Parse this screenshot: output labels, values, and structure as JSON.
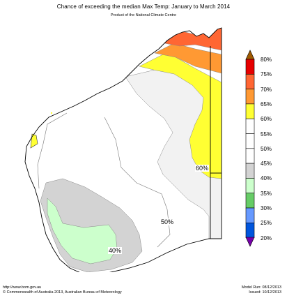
{
  "header": {
    "title": "Chance of exceeding the median Max Temp: January to March 2014",
    "subtitle": "Product of the National Climate Centre"
  },
  "map": {
    "labels": {
      "p60": "60%",
      "p50": "50%",
      "p40": "40%"
    },
    "colors": {
      "c70_75": "#ff6633",
      "c65_70": "#ff9933",
      "c60_65": "#ffff33",
      "c55_60": "#f2f2f2",
      "c40_45": "#d3d3d3",
      "c35_40": "#ccffcc"
    }
  },
  "legend": {
    "items": [
      {
        "label": "80%",
        "color": "#e60000"
      },
      {
        "label": "75%",
        "color": "#ff6633"
      },
      {
        "label": "70%",
        "color": "#ff9933"
      },
      {
        "label": "65%",
        "color": "#ffff33"
      },
      {
        "label": "60%",
        "color": "#ffffff"
      },
      {
        "label": "55%",
        "color": "#ffffff"
      },
      {
        "label": "50%",
        "color": "#ffffff"
      },
      {
        "label": "45%",
        "color": "#d3d3d3"
      },
      {
        "label": "40%",
        "color": "#ccffcc"
      },
      {
        "label": "35%",
        "color": "#66cc66"
      },
      {
        "label": "30%",
        "color": "#6699ff"
      },
      {
        "label": "25%",
        "color": "#0055dd"
      },
      {
        "label": "20%",
        "color": "#7700aa"
      }
    ],
    "top_arrow_color": "#a05a00",
    "bottom_arrow_color": "#7700aa"
  },
  "footer": {
    "website": "http://www.bom.gov.au",
    "copyright": "©  Commonwealth of Australia 2013, Australian Bureau of Meteorology",
    "model_run": "Model Run: 08/12/2013",
    "issued": "Issued: 10/12/2013"
  }
}
